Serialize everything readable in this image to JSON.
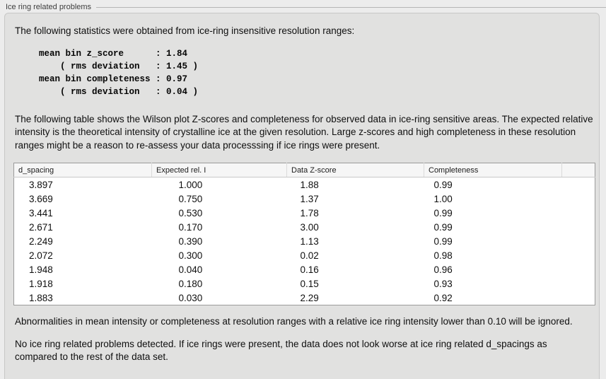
{
  "panel": {
    "title": "Ice ring related problems"
  },
  "intro_text": "The following statistics were obtained from ice-ring insensitive resolution ranges:",
  "stats_block": "mean bin z_score      : 1.84\n    ( rms deviation   : 1.45 )\nmean bin completeness : 0.97\n    ( rms deviation   : 0.04 )",
  "stats": {
    "mean_bin_z_score": "1.84",
    "z_score_rms_deviation": "1.45",
    "mean_bin_completeness": "0.97",
    "completeness_rms_deviation": "0.04"
  },
  "table_description": "The following table shows the Wilson plot Z-scores and completeness for observed data in ice-ring sensitive areas. The expected relative intensity is the theoretical intensity of crystalline ice at the given resolution. Large z-scores and high completeness in these resolution ranges might be a reason to re-assess your data processsing if ice rings were present.",
  "table": {
    "columns": [
      "d_spacing",
      "Expected rel. I",
      "Data Z-score",
      "Completeness",
      ""
    ],
    "rows": [
      [
        "3.897",
        "1.000",
        "1.88",
        "0.99"
      ],
      [
        "3.669",
        "0.750",
        "1.37",
        "1.00"
      ],
      [
        "3.441",
        "0.530",
        "1.78",
        "0.99"
      ],
      [
        "2.671",
        "0.170",
        "3.00",
        "0.99"
      ],
      [
        "2.249",
        "0.390",
        "1.13",
        "0.99"
      ],
      [
        "2.072",
        "0.300",
        "0.02",
        "0.98"
      ],
      [
        "1.948",
        "0.040",
        "0.16",
        "0.96"
      ],
      [
        "1.918",
        "0.180",
        "0.15",
        "0.93"
      ],
      [
        "1.883",
        "0.030",
        "2.29",
        "0.92"
      ]
    ]
  },
  "note_ignore": "Abnormalities in mean intensity or completeness at resolution ranges with a relative ice ring intensity lower than 0.10 will be ignored.",
  "conclusion": "No ice ring related problems detected. If ice rings were present, the data does not look worse at ice ring related d_spacings as compared to the rest of the data set.",
  "colors": {
    "page_background": "#ececec",
    "groupbox_background": "#e1e1e0",
    "groupbox_border": "#c7c7c6",
    "table_border": "#9b9b9b",
    "table_header_background": "#f6f6f6",
    "text": "#0f0f0f"
  }
}
